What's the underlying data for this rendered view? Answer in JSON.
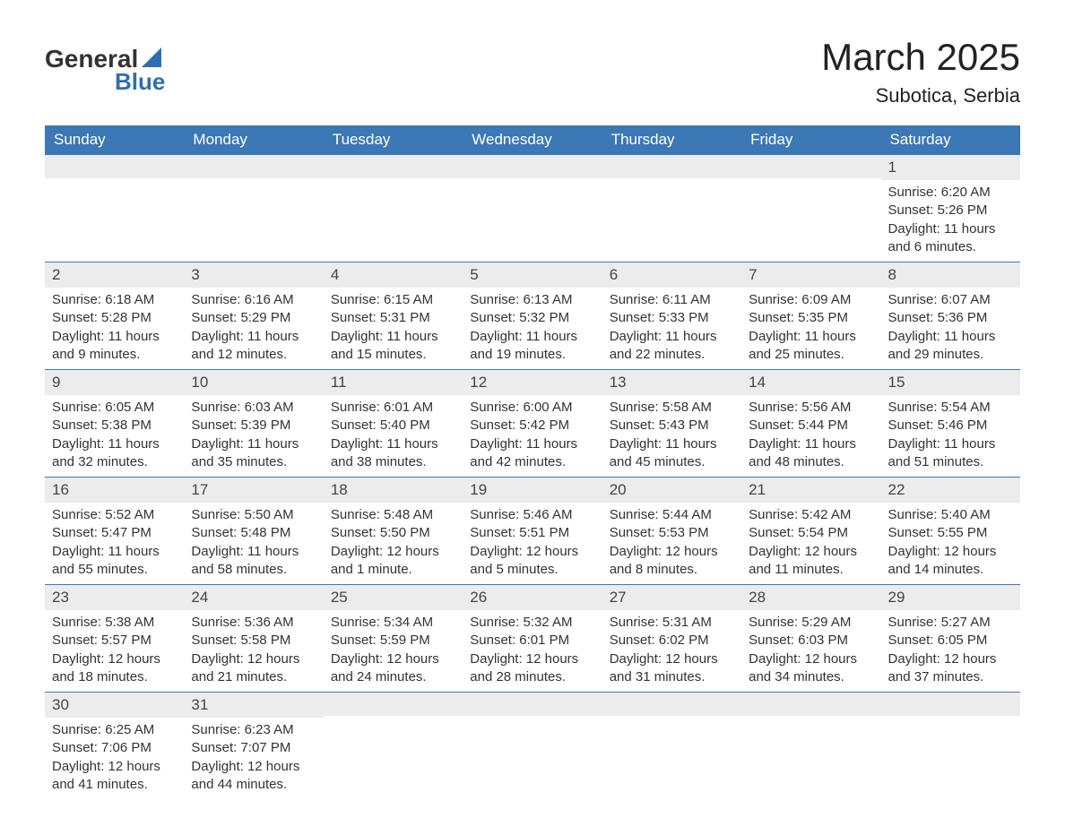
{
  "brand": {
    "part1": "General",
    "part2": "Blue",
    "accent": "#2f6faf"
  },
  "title": "March 2025",
  "location": "Subotica, Serbia",
  "colors": {
    "header_bg": "#3b78b5",
    "header_fg": "#ffffff",
    "daynum_bg": "#ececec",
    "rule": "#3b78b5",
    "text": "#333333"
  },
  "columns": [
    "Sunday",
    "Monday",
    "Tuesday",
    "Wednesday",
    "Thursday",
    "Friday",
    "Saturday"
  ],
  "weeks": [
    [
      {
        "n": "",
        "lines": []
      },
      {
        "n": "",
        "lines": []
      },
      {
        "n": "",
        "lines": []
      },
      {
        "n": "",
        "lines": []
      },
      {
        "n": "",
        "lines": []
      },
      {
        "n": "",
        "lines": []
      },
      {
        "n": "1",
        "lines": [
          "Sunrise: 6:20 AM",
          "Sunset: 5:26 PM",
          "Daylight: 11 hours and 6 minutes."
        ]
      }
    ],
    [
      {
        "n": "2",
        "lines": [
          "Sunrise: 6:18 AM",
          "Sunset: 5:28 PM",
          "Daylight: 11 hours and 9 minutes."
        ]
      },
      {
        "n": "3",
        "lines": [
          "Sunrise: 6:16 AM",
          "Sunset: 5:29 PM",
          "Daylight: 11 hours and 12 minutes."
        ]
      },
      {
        "n": "4",
        "lines": [
          "Sunrise: 6:15 AM",
          "Sunset: 5:31 PM",
          "Daylight: 11 hours and 15 minutes."
        ]
      },
      {
        "n": "5",
        "lines": [
          "Sunrise: 6:13 AM",
          "Sunset: 5:32 PM",
          "Daylight: 11 hours and 19 minutes."
        ]
      },
      {
        "n": "6",
        "lines": [
          "Sunrise: 6:11 AM",
          "Sunset: 5:33 PM",
          "Daylight: 11 hours and 22 minutes."
        ]
      },
      {
        "n": "7",
        "lines": [
          "Sunrise: 6:09 AM",
          "Sunset: 5:35 PM",
          "Daylight: 11 hours and 25 minutes."
        ]
      },
      {
        "n": "8",
        "lines": [
          "Sunrise: 6:07 AM",
          "Sunset: 5:36 PM",
          "Daylight: 11 hours and 29 minutes."
        ]
      }
    ],
    [
      {
        "n": "9",
        "lines": [
          "Sunrise: 6:05 AM",
          "Sunset: 5:38 PM",
          "Daylight: 11 hours and 32 minutes."
        ]
      },
      {
        "n": "10",
        "lines": [
          "Sunrise: 6:03 AM",
          "Sunset: 5:39 PM",
          "Daylight: 11 hours and 35 minutes."
        ]
      },
      {
        "n": "11",
        "lines": [
          "Sunrise: 6:01 AM",
          "Sunset: 5:40 PM",
          "Daylight: 11 hours and 38 minutes."
        ]
      },
      {
        "n": "12",
        "lines": [
          "Sunrise: 6:00 AM",
          "Sunset: 5:42 PM",
          "Daylight: 11 hours and 42 minutes."
        ]
      },
      {
        "n": "13",
        "lines": [
          "Sunrise: 5:58 AM",
          "Sunset: 5:43 PM",
          "Daylight: 11 hours and 45 minutes."
        ]
      },
      {
        "n": "14",
        "lines": [
          "Sunrise: 5:56 AM",
          "Sunset: 5:44 PM",
          "Daylight: 11 hours and 48 minutes."
        ]
      },
      {
        "n": "15",
        "lines": [
          "Sunrise: 5:54 AM",
          "Sunset: 5:46 PM",
          "Daylight: 11 hours and 51 minutes."
        ]
      }
    ],
    [
      {
        "n": "16",
        "lines": [
          "Sunrise: 5:52 AM",
          "Sunset: 5:47 PM",
          "Daylight: 11 hours and 55 minutes."
        ]
      },
      {
        "n": "17",
        "lines": [
          "Sunrise: 5:50 AM",
          "Sunset: 5:48 PM",
          "Daylight: 11 hours and 58 minutes."
        ]
      },
      {
        "n": "18",
        "lines": [
          "Sunrise: 5:48 AM",
          "Sunset: 5:50 PM",
          "Daylight: 12 hours and 1 minute."
        ]
      },
      {
        "n": "19",
        "lines": [
          "Sunrise: 5:46 AM",
          "Sunset: 5:51 PM",
          "Daylight: 12 hours and 5 minutes."
        ]
      },
      {
        "n": "20",
        "lines": [
          "Sunrise: 5:44 AM",
          "Sunset: 5:53 PM",
          "Daylight: 12 hours and 8 minutes."
        ]
      },
      {
        "n": "21",
        "lines": [
          "Sunrise: 5:42 AM",
          "Sunset: 5:54 PM",
          "Daylight: 12 hours and 11 minutes."
        ]
      },
      {
        "n": "22",
        "lines": [
          "Sunrise: 5:40 AM",
          "Sunset: 5:55 PM",
          "Daylight: 12 hours and 14 minutes."
        ]
      }
    ],
    [
      {
        "n": "23",
        "lines": [
          "Sunrise: 5:38 AM",
          "Sunset: 5:57 PM",
          "Daylight: 12 hours and 18 minutes."
        ]
      },
      {
        "n": "24",
        "lines": [
          "Sunrise: 5:36 AM",
          "Sunset: 5:58 PM",
          "Daylight: 12 hours and 21 minutes."
        ]
      },
      {
        "n": "25",
        "lines": [
          "Sunrise: 5:34 AM",
          "Sunset: 5:59 PM",
          "Daylight: 12 hours and 24 minutes."
        ]
      },
      {
        "n": "26",
        "lines": [
          "Sunrise: 5:32 AM",
          "Sunset: 6:01 PM",
          "Daylight: 12 hours and 28 minutes."
        ]
      },
      {
        "n": "27",
        "lines": [
          "Sunrise: 5:31 AM",
          "Sunset: 6:02 PM",
          "Daylight: 12 hours and 31 minutes."
        ]
      },
      {
        "n": "28",
        "lines": [
          "Sunrise: 5:29 AM",
          "Sunset: 6:03 PM",
          "Daylight: 12 hours and 34 minutes."
        ]
      },
      {
        "n": "29",
        "lines": [
          "Sunrise: 5:27 AM",
          "Sunset: 6:05 PM",
          "Daylight: 12 hours and 37 minutes."
        ]
      }
    ],
    [
      {
        "n": "30",
        "lines": [
          "Sunrise: 6:25 AM",
          "Sunset: 7:06 PM",
          "Daylight: 12 hours and 41 minutes."
        ]
      },
      {
        "n": "31",
        "lines": [
          "Sunrise: 6:23 AM",
          "Sunset: 7:07 PM",
          "Daylight: 12 hours and 44 minutes."
        ]
      },
      {
        "n": "",
        "lines": []
      },
      {
        "n": "",
        "lines": []
      },
      {
        "n": "",
        "lines": []
      },
      {
        "n": "",
        "lines": []
      },
      {
        "n": "",
        "lines": []
      }
    ]
  ]
}
